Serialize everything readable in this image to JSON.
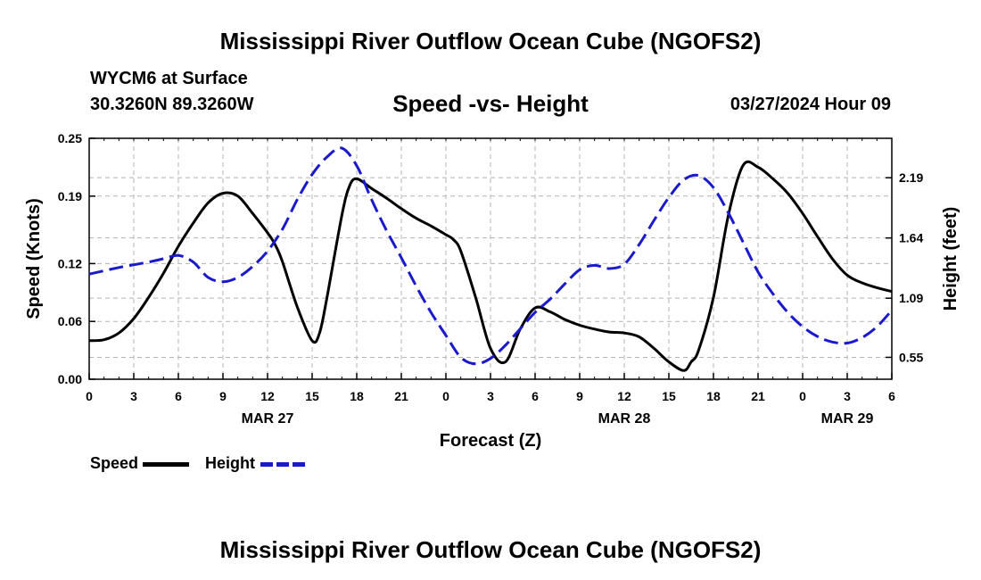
{
  "header": {
    "title": "Mississippi River Outflow Ocean Cube (NGOFS2)",
    "station": "WYCM6 at Surface",
    "coords": "30.3260N  89.3260W",
    "subtitle": "Speed -vs- Height",
    "datetime": "03/27/2024 Hour 09"
  },
  "footer": {
    "title": "Mississippi River Outflow Ocean Cube (NGOFS2)"
  },
  "colors": {
    "speed": "#000000",
    "height": "#1a1acc",
    "grid": "#b4b4b4"
  },
  "chart_data": {
    "type": "line",
    "title": "Speed -vs- Height",
    "xlabel": "Forecast (Z)",
    "ylabel": "Speed (Knots)",
    "y2label": "Height (feet)",
    "xlim": [
      0,
      54
    ],
    "ylim": [
      0,
      0.25
    ],
    "y2lim": [
      0.35,
      2.55
    ],
    "x_ticks": [
      0,
      3,
      6,
      9,
      12,
      15,
      18,
      21,
      24,
      27,
      30,
      33,
      36,
      39,
      42,
      45,
      48,
      51,
      54
    ],
    "x_tick_labels": [
      "0",
      "3",
      "6",
      "9",
      "12",
      "15",
      "18",
      "21",
      "0",
      "3",
      "6",
      "9",
      "12",
      "15",
      "18",
      "21",
      "0",
      "3",
      "6"
    ],
    "y_ticks": [
      0,
      0.06,
      0.12,
      0.19,
      0.25
    ],
    "y_tick_labels": [
      "0.00",
      "0.06",
      "0.12",
      "0.19",
      "0.25"
    ],
    "y2_ticks": [
      0.55,
      1.09,
      1.64,
      2.19
    ],
    "y2_tick_labels": [
      "0.55",
      "1.09",
      "1.64",
      "2.19"
    ],
    "date_labels": [
      {
        "x": 12,
        "label": "MAR 27"
      },
      {
        "x": 36,
        "label": "MAR 28"
      },
      {
        "x": 51,
        "label": "MAR 29"
      }
    ],
    "legend": [
      "Speed",
      "Height"
    ],
    "series": [
      {
        "name": "Speed",
        "axis": "left",
        "style": "solid",
        "x": [
          0,
          1,
          2,
          3,
          4,
          5,
          6,
          7,
          8,
          9,
          10,
          11,
          12,
          12.5,
          13,
          14,
          15,
          15.5,
          16,
          17,
          17.5,
          18,
          19,
          20,
          21,
          22,
          23,
          24,
          24.5,
          25,
          26,
          27,
          28,
          29,
          30,
          31,
          32,
          33,
          34,
          35,
          36,
          37,
          38,
          39,
          40,
          40.5,
          41,
          42,
          43,
          44,
          45,
          46,
          47,
          48,
          49,
          50,
          51,
          52,
          53,
          54
        ],
        "y": [
          0.04,
          0.041,
          0.048,
          0.063,
          0.085,
          0.11,
          0.138,
          0.162,
          0.183,
          0.193,
          0.19,
          0.172,
          0.152,
          0.14,
          0.122,
          0.075,
          0.04,
          0.048,
          0.085,
          0.17,
          0.2,
          0.208,
          0.198,
          0.188,
          0.177,
          0.167,
          0.159,
          0.15,
          0.145,
          0.133,
          0.085,
          0.032,
          0.018,
          0.052,
          0.074,
          0.07,
          0.062,
          0.056,
          0.052,
          0.049,
          0.048,
          0.044,
          0.032,
          0.018,
          0.009,
          0.018,
          0.03,
          0.085,
          0.17,
          0.222,
          0.22,
          0.208,
          0.193,
          0.172,
          0.148,
          0.125,
          0.108,
          0.1,
          0.095,
          0.091
        ]
      },
      {
        "name": "Height",
        "axis": "right",
        "style": "dashed",
        "x": [
          0,
          2,
          4,
          5,
          6,
          7,
          8,
          9,
          10,
          11,
          12,
          13,
          14,
          15,
          16,
          17,
          18,
          19,
          20,
          21,
          22,
          23,
          24,
          25,
          26,
          27,
          28,
          29,
          30,
          31,
          32,
          33,
          34,
          35,
          36,
          37,
          38,
          39,
          40,
          41,
          42,
          43,
          44,
          45,
          46,
          47,
          48,
          49,
          50,
          51,
          52,
          53,
          54
        ],
        "y": [
          1.31,
          1.37,
          1.42,
          1.45,
          1.48,
          1.42,
          1.28,
          1.24,
          1.28,
          1.38,
          1.52,
          1.72,
          1.99,
          2.22,
          2.38,
          2.46,
          2.3,
          1.99,
          1.71,
          1.46,
          1.2,
          0.96,
          0.75,
          0.55,
          0.49,
          0.54,
          0.66,
          0.81,
          0.96,
          1.08,
          1.22,
          1.35,
          1.39,
          1.36,
          1.4,
          1.58,
          1.8,
          2.01,
          2.17,
          2.21,
          2.1,
          1.87,
          1.6,
          1.33,
          1.13,
          0.96,
          0.83,
          0.74,
          0.69,
          0.68,
          0.73,
          0.83,
          0.98
        ]
      }
    ]
  }
}
